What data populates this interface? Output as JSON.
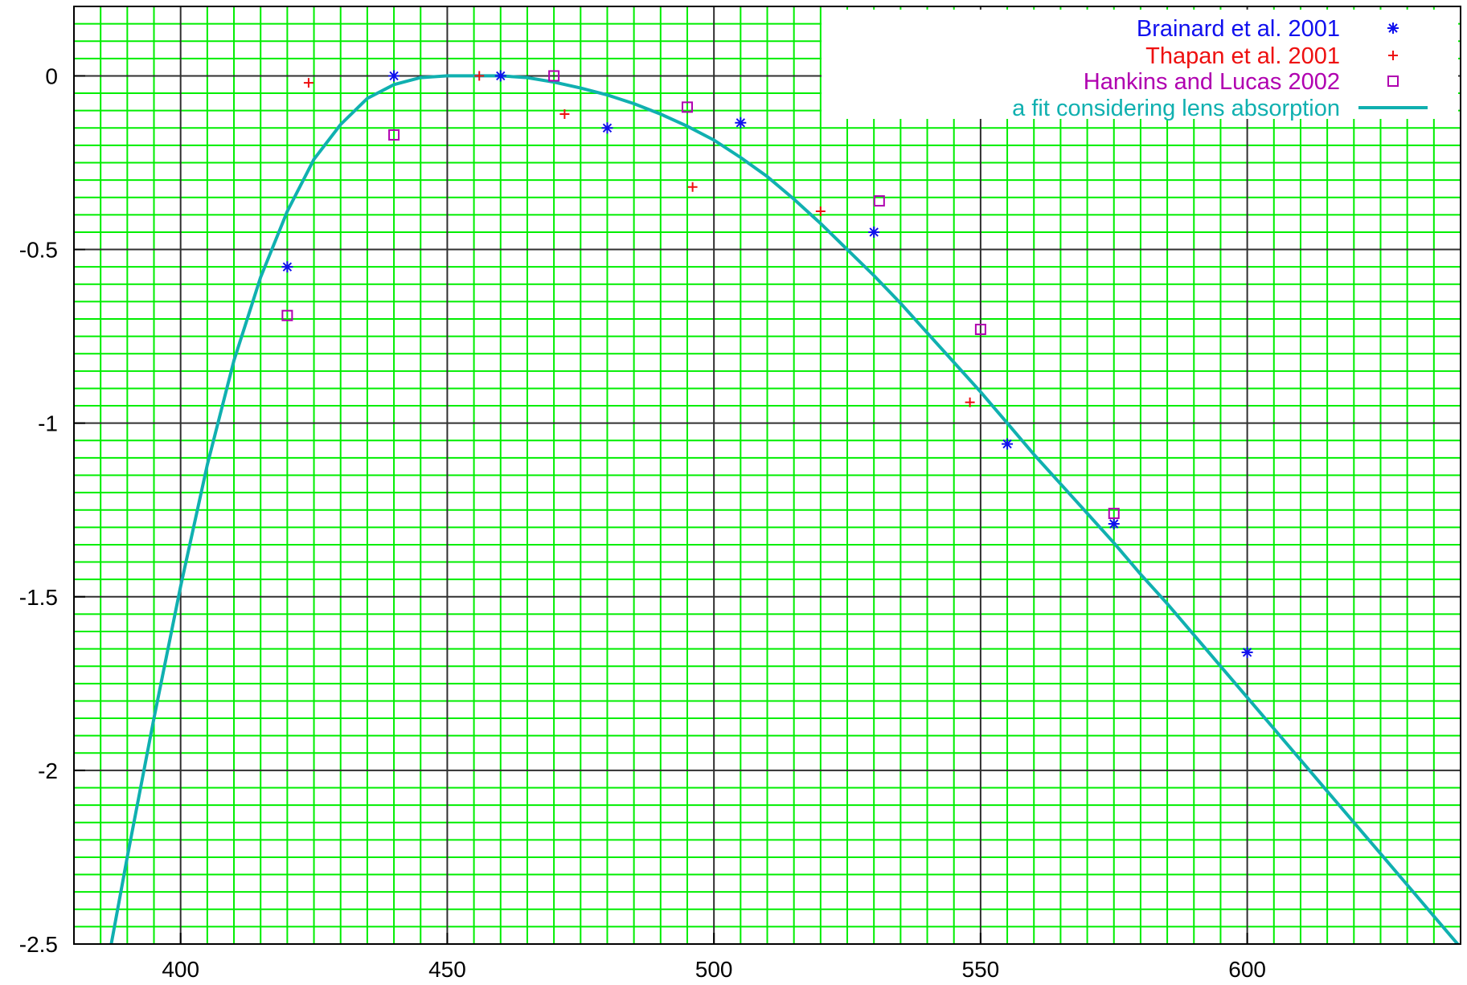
{
  "chart_data": {
    "type": "scatter",
    "title": "",
    "xlabel": "",
    "ylabel": "",
    "xlim": [
      380,
      640
    ],
    "ylim": [
      -2.5,
      0.2
    ],
    "x_major_ticks": [
      400,
      450,
      500,
      550,
      600
    ],
    "x_minor_step": 5,
    "y_major_ticks": [
      0,
      -0.5,
      -1,
      -1.5,
      -2,
      -2.5
    ],
    "y_minor_step": 0.05,
    "y_tick_labels": [
      "0",
      "-0.5",
      "-1",
      "-1.5",
      "-2",
      "-2.5"
    ],
    "grid": true,
    "grid_color": "#00ee00",
    "major_grid_color": "#303030",
    "legend_position": "top-right",
    "series": [
      {
        "name": "Brainard et al. 2001",
        "kind": "points",
        "marker": "asterisk",
        "color": "#1010ee",
        "x": [
          420,
          440,
          460,
          480,
          505,
          530,
          555,
          575,
          600
        ],
        "y": [
          -0.55,
          0.0,
          0.0,
          -0.15,
          -0.135,
          -0.45,
          -1.06,
          -1.29,
          -1.66
        ]
      },
      {
        "name": "Thapan et al. 2001",
        "kind": "points",
        "marker": "plus",
        "color": "#ee1010",
        "x": [
          424,
          456,
          472,
          496,
          520,
          548
        ],
        "y": [
          -0.02,
          0.0,
          -0.11,
          -0.32,
          -0.39,
          -0.94
        ]
      },
      {
        "name": "Hankins and Lucas 2002",
        "kind": "points",
        "marker": "square",
        "color": "#b000b0",
        "x": [
          420,
          440,
          470,
          495,
          531,
          550,
          575
        ],
        "y": [
          -0.69,
          -0.17,
          0.0,
          -0.09,
          -0.36,
          -0.73,
          -1.26
        ]
      },
      {
        "name": "a fit considering lens absorption",
        "kind": "line",
        "color": "#10b0b0",
        "x": [
          387,
          390,
          395,
          400,
          405,
          410,
          415,
          420,
          425,
          430,
          435,
          440,
          445,
          450,
          455,
          460,
          465,
          470,
          475,
          480,
          485,
          490,
          495,
          500,
          505,
          510,
          515,
          520,
          525,
          530,
          535,
          540,
          545,
          550,
          555,
          560,
          565,
          570,
          575,
          580,
          585,
          590,
          595,
          600,
          605,
          610,
          615,
          620,
          625,
          630,
          635,
          640
        ],
        "y": [
          -2.5,
          -2.25,
          -1.85,
          -1.47,
          -1.12,
          -0.82,
          -0.58,
          -0.39,
          -0.24,
          -0.14,
          -0.065,
          -0.025,
          -0.005,
          0.0,
          0.0,
          0.0,
          -0.005,
          -0.018,
          -0.035,
          -0.055,
          -0.08,
          -0.11,
          -0.145,
          -0.185,
          -0.235,
          -0.29,
          -0.355,
          -0.425,
          -0.5,
          -0.575,
          -0.655,
          -0.74,
          -0.825,
          -0.91,
          -1.0,
          -1.09,
          -1.175,
          -1.26,
          -1.345,
          -1.435,
          -1.52,
          -1.61,
          -1.7,
          -1.79,
          -1.88,
          -1.97,
          -2.06,
          -2.15,
          -2.24,
          -2.33,
          -2.42,
          -2.51
        ]
      }
    ]
  }
}
